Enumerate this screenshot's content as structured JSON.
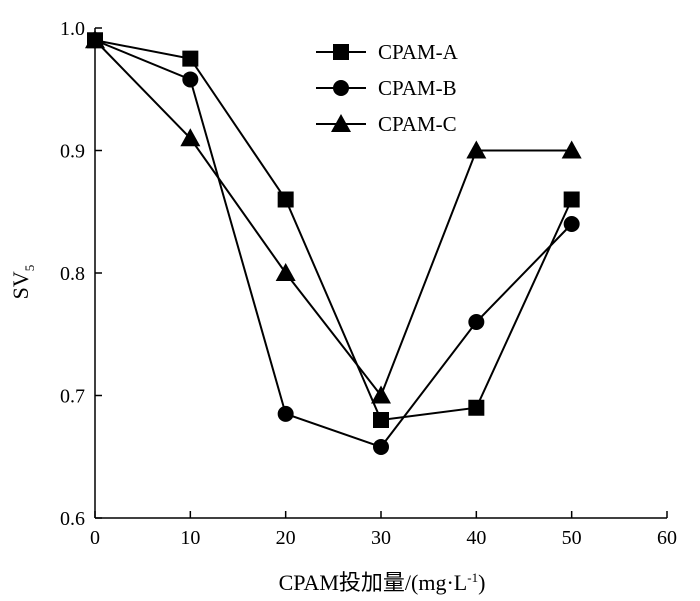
{
  "chart_data": {
    "type": "line",
    "xlabel": "CPAM投加量/(mg·L",
    "xlabel_sup": "-1",
    "xlabel_tail": ")",
    "ylabel": "SV",
    "ylabel_sub": "5",
    "xlim": [
      0,
      60
    ],
    "ylim": [
      0.6,
      1.0
    ],
    "x_ticks": [
      0,
      10,
      20,
      30,
      40,
      50,
      60
    ],
    "y_ticks": [
      0.6,
      0.7,
      0.8,
      0.9,
      1.0
    ],
    "y_tick_labels": [
      "0.6",
      "0.7",
      "0.8",
      "0.9",
      "1.0"
    ],
    "legend_position": "top-center",
    "grid": false,
    "x": [
      0,
      10,
      20,
      30,
      40,
      50
    ],
    "series": [
      {
        "name": "CPAM-A",
        "marker": "square",
        "values": [
          0.99,
          0.975,
          0.86,
          0.68,
          0.69,
          0.86
        ]
      },
      {
        "name": "CPAM-B",
        "marker": "circle",
        "values": [
          0.99,
          0.958,
          0.685,
          0.658,
          0.76,
          0.84
        ]
      },
      {
        "name": "CPAM-C",
        "marker": "triangle",
        "values": [
          0.99,
          0.91,
          0.8,
          0.7,
          0.9,
          0.9
        ]
      }
    ]
  }
}
